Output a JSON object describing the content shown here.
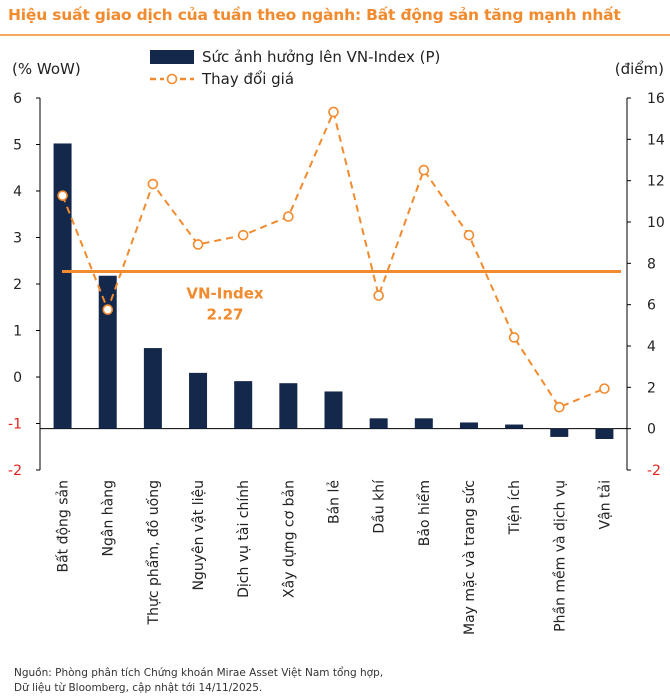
{
  "title": "Hiệu suất giao dịch của tuần theo ngành: Bất động sản tăng mạnh nhất",
  "footer": {
    "line1": "Nguồn: Phòng phân tích Chứng khoán Mirae Asset Việt Nam tổng hợp,",
    "line2": "Dữ liệu từ Bloomberg, cập nhật tới 14/11/2025."
  },
  "chart_data": {
    "type": "bar",
    "title": "Hiệu suất giao dịch của tuần theo ngành: Bất động sản tăng mạnh nhất",
    "ylabel_left": "(% WoW)",
    "ylabel_right": "(điểm)",
    "ylim_left": [
      -2,
      6
    ],
    "ylim_right": [
      -2,
      16
    ],
    "yticks_left": [
      "6",
      "5",
      "4",
      "3",
      "2",
      "1",
      "0",
      "-1",
      "-2"
    ],
    "yticks_right": [
      "16",
      "14",
      "12",
      "10",
      "8",
      "6",
      "4",
      "2",
      "0",
      "-2"
    ],
    "categories": [
      "Bất động sản",
      "Ngân hàng",
      "Thực phẩm, đồ uống",
      "Nguyên vật liệu",
      "Dịch vụ tài chính",
      "Xây dựng cơ bản",
      "Bán lẻ",
      "Dầu khí",
      "Bảo hiểm",
      "May mặc và trang sức",
      "Tiện ích",
      "Phần mềm và dịch vụ",
      "Vận tải"
    ],
    "series": [
      {
        "name": "Sức ảnh hưởng lên VN-Index (P)",
        "axis": "right",
        "kind": "bar",
        "color": "#14284b",
        "values": [
          13.8,
          7.4,
          3.9,
          2.7,
          2.3,
          2.2,
          1.8,
          0.5,
          0.5,
          0.3,
          0.2,
          -0.4,
          -0.5
        ]
      },
      {
        "name": "Thay đổi giá",
        "axis": "left",
        "kind": "line",
        "color": "#f28a2e",
        "values": [
          3.9,
          1.45,
          4.15,
          2.85,
          3.05,
          3.45,
          5.7,
          1.75,
          4.45,
          3.05,
          0.85,
          -0.65,
          -0.25
        ]
      }
    ],
    "reference_line": {
      "label": "VN-Index",
      "value_label": "2.27",
      "axis": "left",
      "value": 2.27,
      "color": "#f28a2e"
    },
    "legend_position": "top-center",
    "grid": false
  }
}
